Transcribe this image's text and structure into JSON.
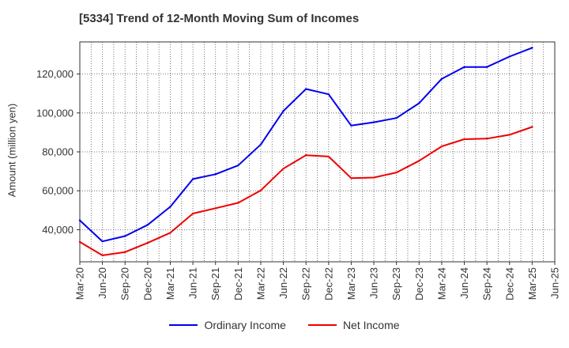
{
  "chart_data": {
    "type": "line",
    "title": "[5334]  Trend of 12-Month Moving Sum of Incomes",
    "xlabel": "",
    "ylabel": "Amount (million yen)",
    "categories": [
      "Mar-20",
      "Jun-20",
      "Sep-20",
      "Dec-20",
      "Mar-21",
      "Jun-21",
      "Sep-21",
      "Dec-21",
      "Mar-22",
      "Jun-22",
      "Sep-22",
      "Dec-22",
      "Mar-23",
      "Jun-23",
      "Sep-23",
      "Dec-23",
      "Mar-24",
      "Jun-24",
      "Sep-24",
      "Dec-24",
      "Mar-25",
      "Jun-25"
    ],
    "ylim": [
      23500,
      136500
    ],
    "yticks": [
      40000,
      60000,
      80000,
      100000,
      120000
    ],
    "ytick_labels": [
      "40,000",
      "60,000",
      "80,000",
      "100,000",
      "120,000"
    ],
    "grid": true,
    "legend_position": "bottom-center",
    "series": [
      {
        "name": "Ordinary Income",
        "color": "#0000ee",
        "values": [
          44800,
          34000,
          36700,
          42500,
          51800,
          66000,
          68500,
          73000,
          83800,
          101000,
          112300,
          109600,
          93500,
          95200,
          97400,
          105000,
          117500,
          123600,
          123600,
          129000,
          133500,
          null
        ]
      },
      {
        "name": "Net Income",
        "color": "#ee0000",
        "values": [
          33700,
          26800,
          28500,
          33200,
          38400,
          48300,
          51000,
          53800,
          60200,
          71400,
          78300,
          77600,
          66500,
          66800,
          69400,
          75400,
          82800,
          86500,
          86800,
          88800,
          92800,
          null
        ]
      }
    ]
  }
}
